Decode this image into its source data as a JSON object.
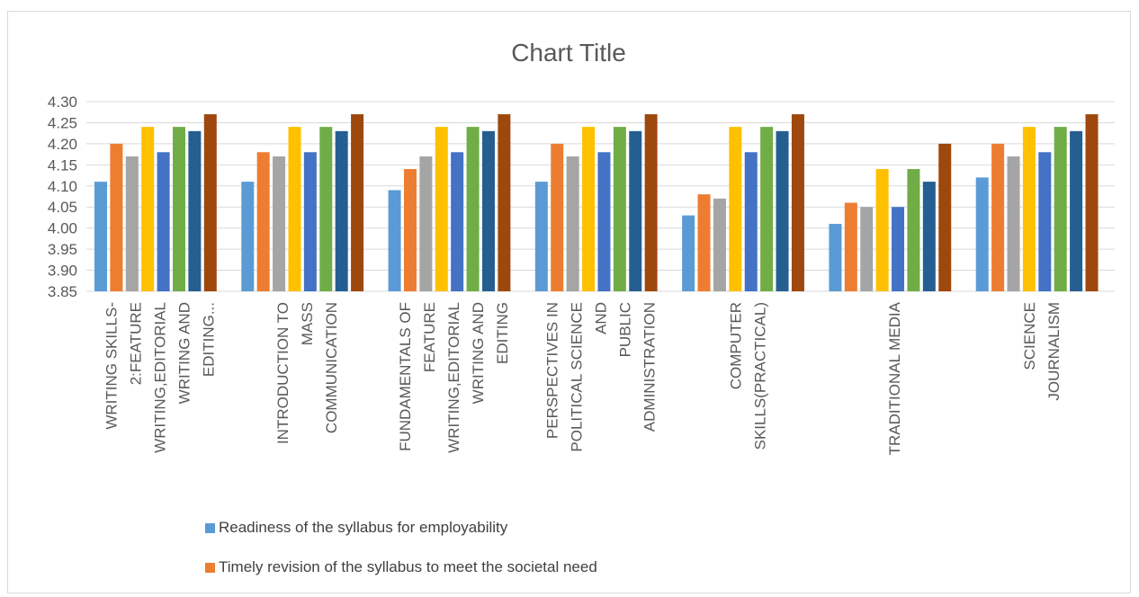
{
  "chart_data": {
    "type": "bar",
    "title": "Chart Title",
    "categories": [
      [
        "WRITING SKILLS-",
        "2:FEATURE",
        "WRITING,EDITORIAL",
        "WRITING AND",
        "EDITING..."
      ],
      [
        "INTRODUCTION TO",
        "MASS",
        "COMMUNICATION"
      ],
      [
        "FUNDAMENTALS OF",
        "FEATURE",
        "WRITING,EDITORIAL",
        "WRITING AND",
        "EDITING"
      ],
      [
        "PERSPECTIVES IN",
        "POLITICAL SCIENCE",
        "AND",
        "PUBLIC",
        "ADMINISTRATION"
      ],
      [
        "COMPUTER",
        "SKILLS(PRACTICAL)"
      ],
      [
        "TRADITIONAL MEDIA"
      ],
      [
        "SCIENCE",
        "JOURNALISM"
      ]
    ],
    "series": [
      {
        "name": "Readiness of the syllabus for employability",
        "color": "#5b9bd5",
        "values": [
          4.11,
          4.11,
          4.09,
          4.11,
          4.03,
          4.01,
          4.12
        ]
      },
      {
        "name": "Timely revision of the syllabus to meet the societal need",
        "color": "#ed7d31",
        "values": [
          4.2,
          4.18,
          4.14,
          4.2,
          4.08,
          4.06,
          4.2
        ]
      },
      {
        "color": "#a5a5a5",
        "values": [
          4.17,
          4.17,
          4.17,
          4.17,
          4.07,
          4.05,
          4.17
        ]
      },
      {
        "color": "#ffc000",
        "values": [
          4.24,
          4.24,
          4.24,
          4.24,
          4.24,
          4.14,
          4.24
        ]
      },
      {
        "color": "#4472c4",
        "values": [
          4.18,
          4.18,
          4.18,
          4.18,
          4.18,
          4.05,
          4.18
        ]
      },
      {
        "color": "#70ad47",
        "values": [
          4.24,
          4.24,
          4.24,
          4.24,
          4.24,
          4.14,
          4.24
        ]
      },
      {
        "color": "#255e91",
        "values": [
          4.23,
          4.23,
          4.23,
          4.23,
          4.23,
          4.11,
          4.23
        ]
      },
      {
        "color": "#9e480e",
        "values": [
          4.27,
          4.27,
          4.27,
          4.27,
          4.27,
          4.2,
          4.27
        ]
      }
    ],
    "ylim": [
      3.85,
      4.3
    ],
    "yticks": [
      "3.85",
      "3.90",
      "3.95",
      "4.00",
      "4.05",
      "4.10",
      "4.15",
      "4.20",
      "4.25",
      "4.30"
    ],
    "grid": true,
    "legend_position": "bottom"
  }
}
